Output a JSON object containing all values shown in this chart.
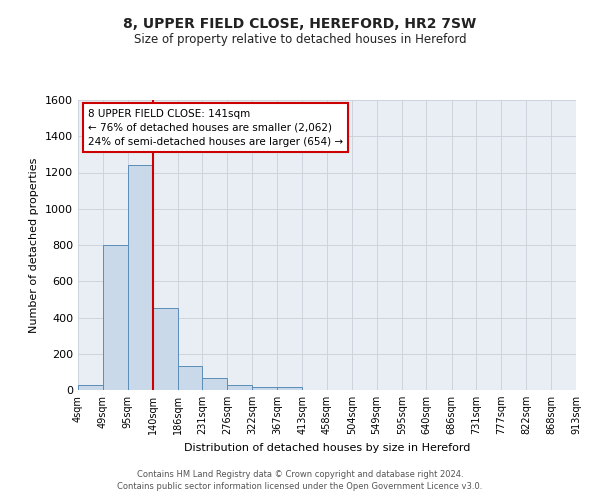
{
  "title": "8, UPPER FIELD CLOSE, HEREFORD, HR2 7SW",
  "subtitle": "Size of property relative to detached houses in Hereford",
  "xlabel": "Distribution of detached houses by size in Hereford",
  "ylabel": "Number of detached properties",
  "bin_edges": [
    4,
    49,
    95,
    140,
    186,
    231,
    276,
    322,
    367,
    413,
    458,
    504,
    549,
    595,
    640,
    686,
    731,
    777,
    822,
    868,
    913
  ],
  "bin_counts": [
    25,
    800,
    1240,
    455,
    130,
    65,
    25,
    15,
    15,
    0,
    0,
    0,
    0,
    0,
    0,
    0,
    0,
    0,
    0,
    0
  ],
  "bar_facecolor": "#c9d9ea",
  "bar_edgecolor": "#5b8db8",
  "vline_x": 141,
  "vline_color": "#cc0000",
  "ylim": [
    0,
    1600
  ],
  "yticks": [
    0,
    200,
    400,
    600,
    800,
    1000,
    1200,
    1400,
    1600
  ],
  "annotation_text": "8 UPPER FIELD CLOSE: 141sqm\n← 76% of detached houses are smaller (2,062)\n24% of semi-detached houses are larger (654) →",
  "annotation_box_edgecolor": "#cc0000",
  "annotation_box_facecolor": "#ffffff",
  "grid_color": "#c8d0da",
  "bg_color": "#e8eef4",
  "fig_bg_color": "#ffffff",
  "footer1": "Contains HM Land Registry data © Crown copyright and database right 2024.",
  "footer2": "Contains public sector information licensed under the Open Government Licence v3.0.",
  "tick_labels": [
    "4sqm",
    "49sqm",
    "95sqm",
    "140sqm",
    "186sqm",
    "231sqm",
    "276sqm",
    "322sqm",
    "367sqm",
    "413sqm",
    "458sqm",
    "504sqm",
    "549sqm",
    "595sqm",
    "640sqm",
    "686sqm",
    "731sqm",
    "777sqm",
    "822sqm",
    "868sqm",
    "913sqm"
  ]
}
